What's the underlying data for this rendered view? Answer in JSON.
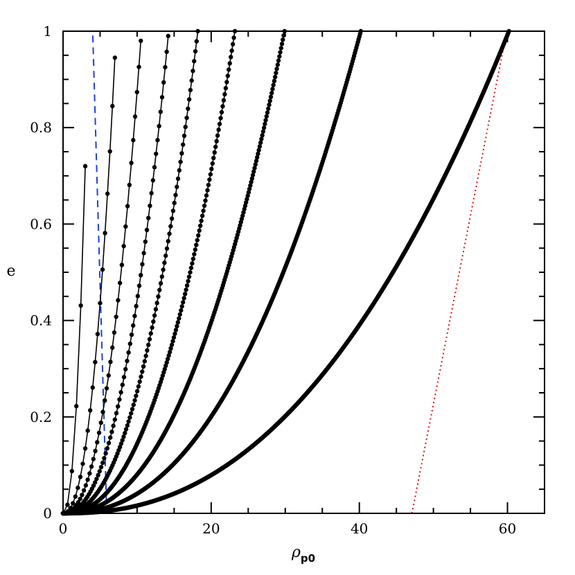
{
  "chart_data": {
    "type": "line",
    "title": "",
    "xlabel": {
      "symbol": "ρ",
      "subscript": "p0"
    },
    "ylabel": "e",
    "xlim": [
      0,
      65
    ],
    "ylim": [
      0,
      1
    ],
    "x_ticks": [
      {
        "value": 0,
        "label": "0"
      },
      {
        "value": 20,
        "label": "20"
      },
      {
        "value": 40,
        "label": "40"
      },
      {
        "value": 60,
        "label": "60"
      }
    ],
    "y_ticks": [
      {
        "value": 0,
        "label": "0"
      },
      {
        "value": 0.2,
        "label": "0.2"
      },
      {
        "value": 0.4,
        "label": "0.4"
      },
      {
        "value": 0.6,
        "label": "0.6"
      },
      {
        "value": 0.8,
        "label": "0.8"
      },
      {
        "value": 1,
        "label": "1"
      }
    ],
    "grid": false,
    "series": [
      {
        "x_end": 3.0,
        "e_end": 0.72,
        "points": 6,
        "color": "#000000",
        "style": "solid-with-markers"
      },
      {
        "x_end": 7.0,
        "e_end": 0.945,
        "points": 22,
        "color": "#000000",
        "style": "solid-with-markers"
      },
      {
        "x_end": 10.5,
        "e_end": 0.98,
        "points": 42,
        "color": "#000000",
        "style": "solid-with-markers"
      },
      {
        "x_end": 14.2,
        "e_end": 0.99,
        "points": 70,
        "color": "#000000",
        "style": "solid-with-markers"
      },
      {
        "x_end": 18.2,
        "e_end": 1.0,
        "points": 110,
        "color": "#000000",
        "style": "solid-with-markers"
      },
      {
        "x_end": 23.2,
        "e_end": 1.0,
        "points": 170,
        "color": "#000000",
        "style": "solid-with-markers"
      },
      {
        "x_end": 29.9,
        "e_end": 1.0,
        "points": 260,
        "color": "#000000",
        "style": "solid-with-markers"
      },
      {
        "x_end": 40.2,
        "e_end": 1.0,
        "points": 400,
        "color": "#000000",
        "style": "solid-with-markers"
      },
      {
        "x_end": 60.2,
        "e_end": 1.0,
        "points": 700,
        "color": "#000000",
        "style": "solid-with-markers"
      }
    ],
    "reference_lines": [
      {
        "color": "#1f3fd8",
        "style": "dashed",
        "x": [
          5.9,
          4.0
        ],
        "y": [
          0,
          1
        ]
      },
      {
        "color": "#e01010",
        "style": "dotted",
        "x": [
          47.1,
          59.9
        ],
        "y": [
          0,
          1
        ]
      }
    ]
  }
}
